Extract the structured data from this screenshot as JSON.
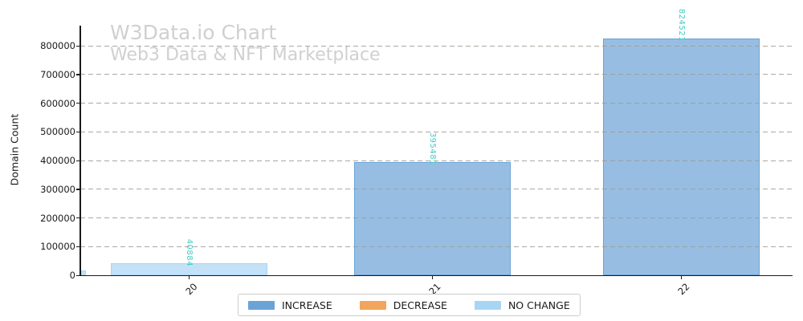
{
  "watermark": {
    "title": "W3Data.io Chart",
    "subtitle": "Web3 Data & NFT Marketplace",
    "color": "#d0d0d0"
  },
  "chart_data": {
    "type": "bar",
    "title": "",
    "xlabel": "",
    "ylabel": "Domain Count",
    "categories": [
      "20",
      "21",
      "22"
    ],
    "values": [
      40884,
      395481,
      824521
    ],
    "value_labels": [
      "40884",
      "395481",
      "824521"
    ],
    "bar_statuses": [
      "NO CHANGE",
      "INCREASE",
      "INCREASE"
    ],
    "value_label_color": "#3ecdc7",
    "ylim": [
      0,
      870000
    ],
    "yticks": [
      0,
      100000,
      200000,
      300000,
      400000,
      500000,
      600000,
      700000,
      800000
    ],
    "ytick_labels": [
      "0",
      "100000",
      "200000",
      "300000",
      "400000",
      "500000",
      "600000",
      "700000",
      "800000"
    ],
    "grid": "horizontal dashed",
    "legend_position": "bottom center",
    "legend": [
      {
        "label": "INCREASE",
        "color": "#6ba3d6"
      },
      {
        "label": "DECREASE",
        "color": "#f2a55c"
      },
      {
        "label": "NO CHANGE",
        "color": "#a9d5f4"
      }
    ],
    "partial_bar_clipped_at_left_axis": true
  },
  "colors": {
    "axis": "#1a1a1a",
    "grid": "#9e988f"
  }
}
